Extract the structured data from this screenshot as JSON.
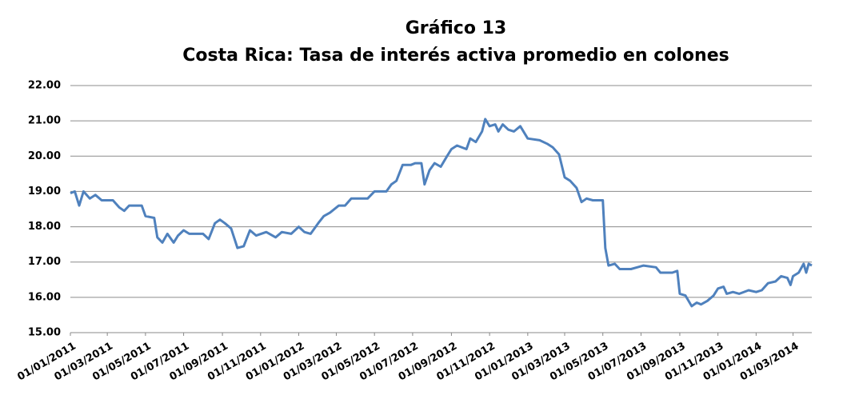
{
  "chart_data": {
    "type": "line",
    "title": "Gráfico 13",
    "subtitle": "Costa Rica: Tasa de interés activa promedio en colones",
    "x": [
      "2011-01-01",
      "2011-01-08",
      "2011-01-15",
      "2011-01-22",
      "2011-02-01",
      "2011-02-10",
      "2011-02-20",
      "2011-03-10",
      "2011-03-20",
      "2011-03-28",
      "2011-04-05",
      "2011-04-25",
      "2011-05-01",
      "2011-05-15",
      "2011-05-20",
      "2011-05-28",
      "2011-06-05",
      "2011-06-15",
      "2011-06-22",
      "2011-07-01",
      "2011-07-10",
      "2011-08-01",
      "2011-08-10",
      "2011-08-20",
      "2011-08-28",
      "2011-09-05",
      "2011-09-15",
      "2011-09-25",
      "2011-10-05",
      "2011-10-15",
      "2011-10-25",
      "2011-11-10",
      "2011-11-25",
      "2011-12-05",
      "2011-12-20",
      "2012-01-01",
      "2012-01-10",
      "2012-01-20",
      "2012-02-01",
      "2012-02-10",
      "2012-02-20",
      "2012-03-05",
      "2012-03-15",
      "2012-03-25",
      "2012-04-10",
      "2012-04-20",
      "2012-05-01",
      "2012-05-20",
      "2012-05-28",
      "2012-06-05",
      "2012-06-15",
      "2012-06-28",
      "2012-07-05",
      "2012-07-15",
      "2012-07-20",
      "2012-07-28",
      "2012-08-05",
      "2012-08-15",
      "2012-08-25",
      "2012-09-01",
      "2012-09-10",
      "2012-09-25",
      "2012-10-01",
      "2012-10-10",
      "2012-10-20",
      "2012-10-25",
      "2012-11-01",
      "2012-11-10",
      "2012-11-15",
      "2012-11-22",
      "2012-12-01",
      "2012-12-10",
      "2012-12-20",
      "2013-01-01",
      "2013-01-20",
      "2013-02-01",
      "2013-02-10",
      "2013-02-20",
      "2013-03-01",
      "2013-03-10",
      "2013-03-20",
      "2013-03-28",
      "2013-04-05",
      "2013-04-15",
      "2013-05-01",
      "2013-05-05",
      "2013-05-10",
      "2013-05-20",
      "2013-05-28",
      "2013-06-15",
      "2013-06-25",
      "2013-07-05",
      "2013-07-25",
      "2013-08-01",
      "2013-08-20",
      "2013-08-28",
      "2013-09-01",
      "2013-09-10",
      "2013-09-20",
      "2013-09-28",
      "2013-10-05",
      "2013-10-15",
      "2013-10-25",
      "2013-11-01",
      "2013-11-10",
      "2013-11-15",
      "2013-11-25",
      "2013-12-05",
      "2013-12-20",
      "2014-01-01",
      "2014-01-10",
      "2014-01-20",
      "2014-02-01",
      "2014-02-10",
      "2014-02-20",
      "2014-02-25",
      "2014-03-01",
      "2014-03-10",
      "2014-03-18",
      "2014-03-22",
      "2014-03-26",
      "2014-03-31"
    ],
    "series": [
      {
        "color": "#4f81bd",
        "values": [
          18.95,
          19.0,
          18.6,
          19.0,
          18.8,
          18.9,
          18.75,
          18.75,
          18.55,
          18.45,
          18.6,
          18.6,
          18.3,
          18.25,
          17.7,
          17.55,
          17.8,
          17.55,
          17.75,
          17.9,
          17.8,
          17.8,
          17.65,
          18.1,
          18.2,
          18.1,
          17.95,
          17.4,
          17.45,
          17.9,
          17.75,
          17.85,
          17.7,
          17.85,
          17.8,
          18.0,
          17.85,
          17.8,
          18.1,
          18.3,
          18.4,
          18.6,
          18.6,
          18.8,
          18.8,
          18.8,
          19.0,
          19.0,
          19.2,
          19.3,
          19.75,
          19.75,
          19.8,
          19.8,
          19.2,
          19.6,
          19.8,
          19.7,
          20.0,
          20.2,
          20.3,
          20.2,
          20.5,
          20.4,
          20.7,
          21.05,
          20.85,
          20.9,
          20.7,
          20.9,
          20.75,
          20.7,
          20.85,
          20.5,
          20.45,
          20.35,
          20.25,
          20.05,
          19.4,
          19.3,
          19.1,
          18.7,
          18.8,
          18.75,
          18.75,
          17.4,
          16.9,
          16.95,
          16.8,
          16.8,
          16.85,
          16.9,
          16.85,
          16.7,
          16.7,
          16.75,
          16.1,
          16.05,
          15.75,
          15.85,
          15.8,
          15.9,
          16.05,
          16.25,
          16.3,
          16.1,
          16.15,
          16.1,
          16.2,
          16.15,
          16.2,
          16.4,
          16.45,
          16.6,
          16.55,
          16.35,
          16.6,
          16.7,
          16.95,
          16.7,
          16.95,
          16.9
        ]
      }
    ],
    "xlim": [
      "2011-01-01",
      "2014-03-31"
    ],
    "xticks": [
      {
        "value": "2011-01-01",
        "label": "01/01/2011"
      },
      {
        "value": "2011-03-01",
        "label": "01/03/2011"
      },
      {
        "value": "2011-05-01",
        "label": "01/05/2011"
      },
      {
        "value": "2011-07-01",
        "label": "01/07/2011"
      },
      {
        "value": "2011-09-01",
        "label": "01/09/2011"
      },
      {
        "value": "2011-11-01",
        "label": "01/11/2011"
      },
      {
        "value": "2012-01-01",
        "label": "01/01/2012"
      },
      {
        "value": "2012-03-01",
        "label": "01/03/2012"
      },
      {
        "value": "2012-05-01",
        "label": "01/05/2012"
      },
      {
        "value": "2012-07-01",
        "label": "01/07/2012"
      },
      {
        "value": "2012-09-01",
        "label": "01/09/2012"
      },
      {
        "value": "2012-11-01",
        "label": "01/11/2012"
      },
      {
        "value": "2013-01-01",
        "label": "01/01/2013"
      },
      {
        "value": "2013-03-01",
        "label": "01/03/2013"
      },
      {
        "value": "2013-05-01",
        "label": "01/05/2013"
      },
      {
        "value": "2013-07-01",
        "label": "01/07/2013"
      },
      {
        "value": "2013-09-01",
        "label": "01/09/2013"
      },
      {
        "value": "2013-11-01",
        "label": "01/11/2013"
      },
      {
        "value": "2014-01-01",
        "label": "01/01/2014"
      },
      {
        "value": "2014-03-01",
        "label": "01/03/2014"
      }
    ],
    "ylim": [
      15,
      22
    ],
    "yticks": [
      {
        "value": 15,
        "label": "15.00"
      },
      {
        "value": 16,
        "label": "16.00"
      },
      {
        "value": 17,
        "label": "17.00"
      },
      {
        "value": 18,
        "label": "18.00"
      },
      {
        "value": 19,
        "label": "19.00"
      },
      {
        "value": 20,
        "label": "20.00"
      },
      {
        "value": 21,
        "label": "21.00"
      },
      {
        "value": 22,
        "label": "22.00"
      }
    ],
    "grid": true
  }
}
